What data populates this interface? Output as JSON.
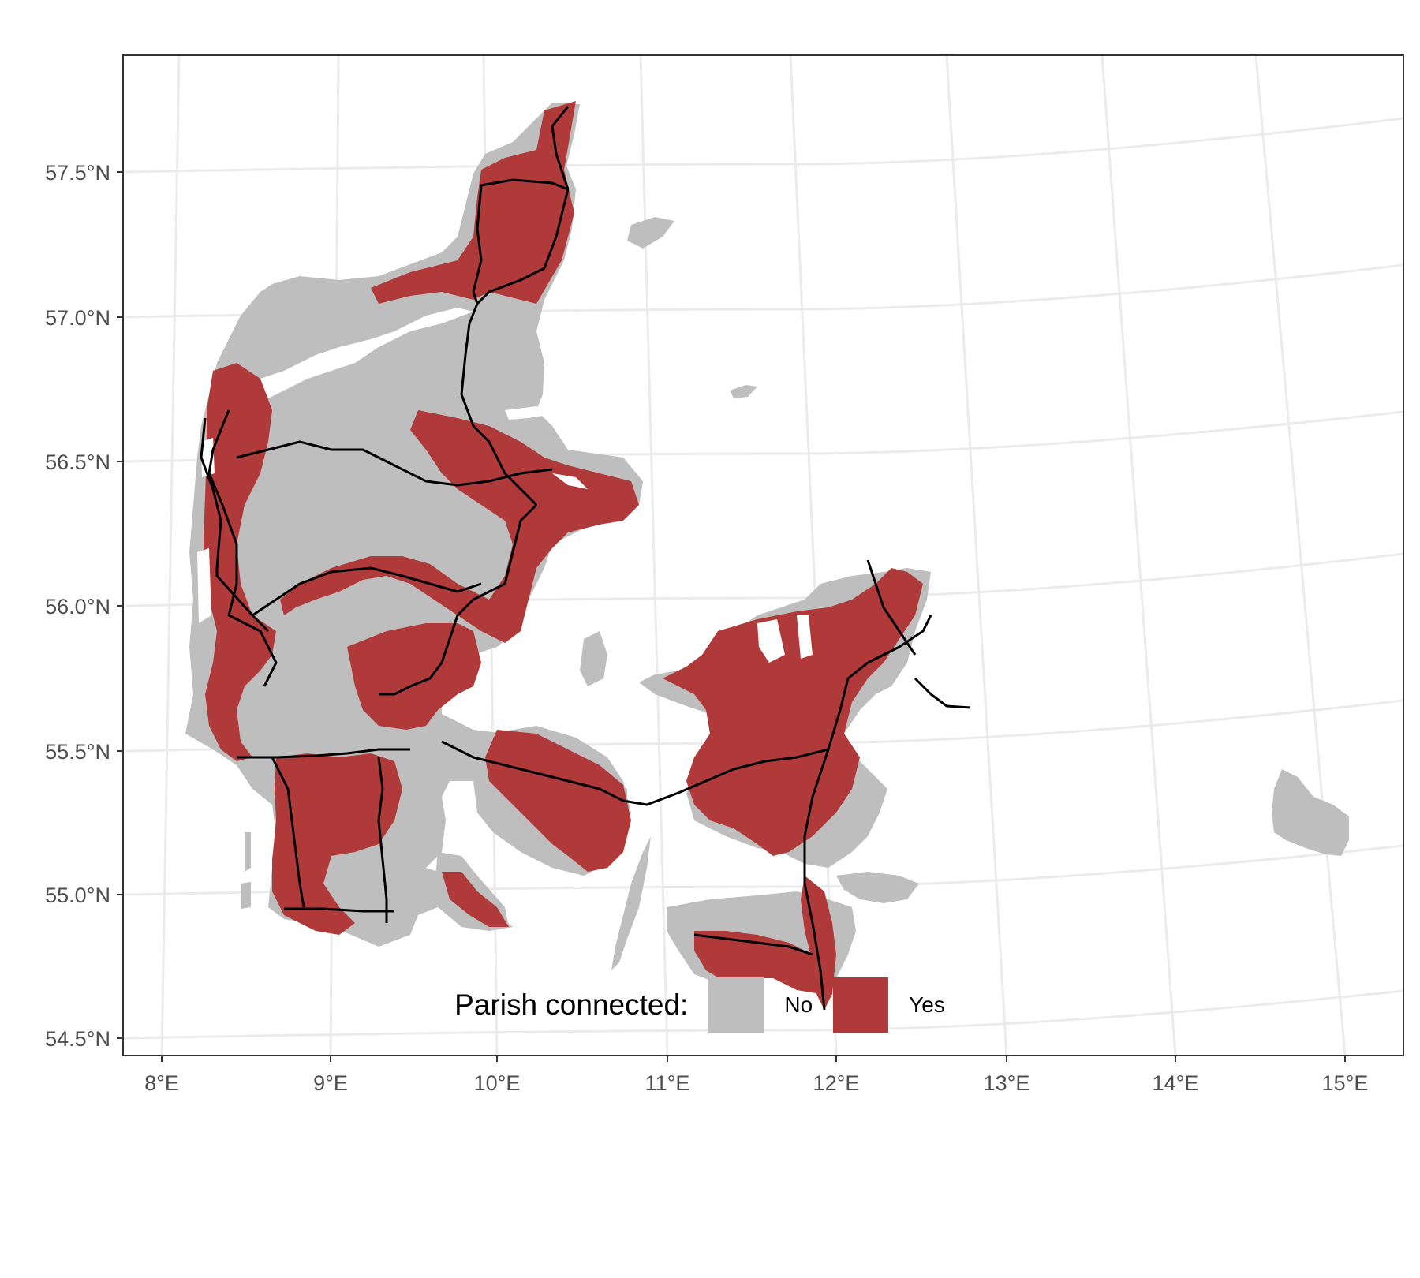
{
  "chart_data": {
    "type": "map",
    "projection": "lat-lon (conic-like, curved graticule)",
    "x_ticks": [
      "8°E",
      "9°E",
      "10°E",
      "11°E",
      "12°E",
      "13°E",
      "14°E",
      "15°E"
    ],
    "y_ticks": [
      "54.5°N",
      "55.0°N",
      "55.5°N",
      "56.0°N",
      "56.5°N",
      "57.0°N",
      "57.5°N"
    ],
    "xlim": [
      7.8,
      15.4
    ],
    "ylim": [
      54.45,
      57.9
    ],
    "grid": true,
    "legend_placement": "bottom",
    "legend": {
      "title": "Parish connected:",
      "items": [
        {
          "label": "No",
          "color": "#bebebe"
        },
        {
          "label": "Yes",
          "color": "#b03a3a"
        }
      ]
    },
    "railway_color": "#000000",
    "ocean_color": "#ffffff",
    "grid_color": "#ebebeb"
  }
}
